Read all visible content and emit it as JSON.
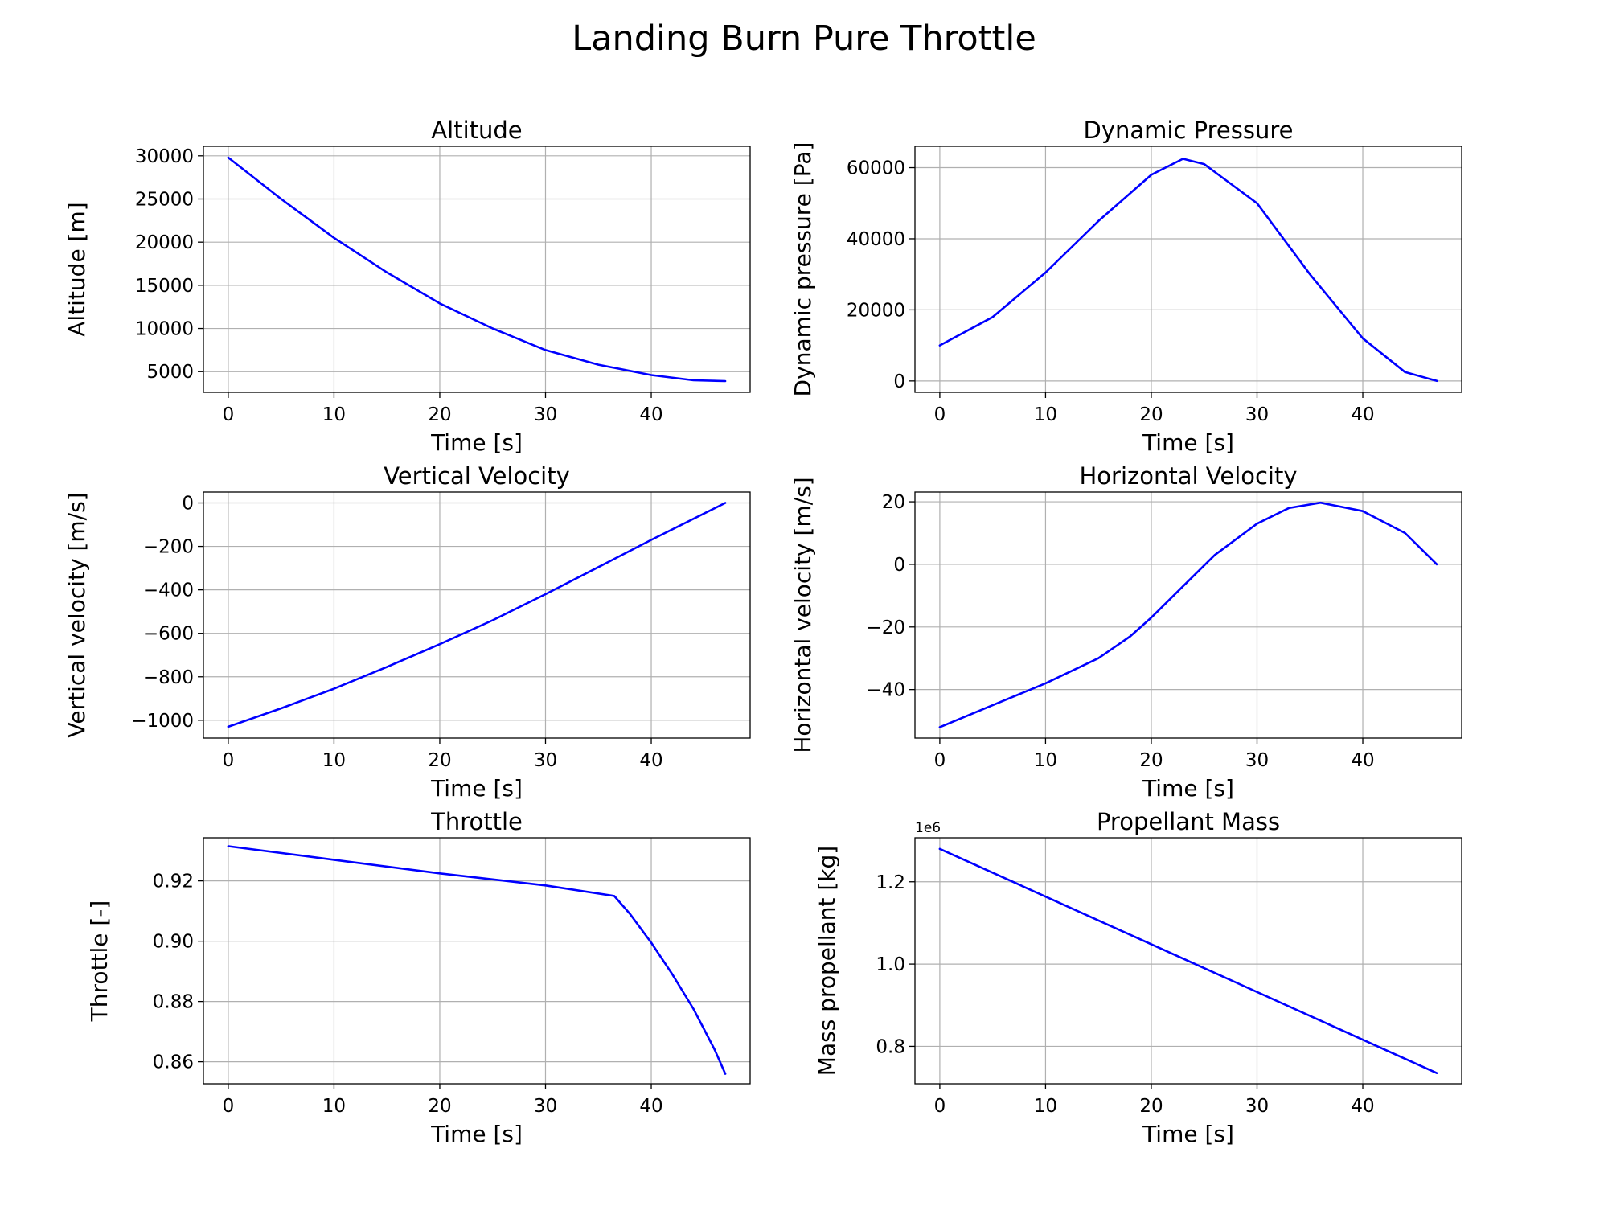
{
  "figure": {
    "title": "Landing Burn Pure Throttle",
    "line_color": "#0000ff",
    "grid": true
  },
  "chart_data": [
    {
      "type": "line",
      "title": "Altitude",
      "xlabel": "Time [s]",
      "ylabel": "Altitude [m]",
      "xlim": [
        -2.35,
        49.35
      ],
      "ylim": [
        2600,
        31100
      ],
      "xticks": [
        0,
        10,
        20,
        30,
        40
      ],
      "xtick_labels": [
        "0",
        "10",
        "20",
        "30",
        "40"
      ],
      "yticks": [
        5000,
        10000,
        15000,
        20000,
        25000,
        30000
      ],
      "ytick_labels": [
        "5000",
        "10000",
        "15000",
        "20000",
        "25000",
        "30000"
      ],
      "offset_text": "",
      "x": [
        0,
        5,
        10,
        15,
        20,
        25,
        30,
        35,
        40,
        44,
        47
      ],
      "y": [
        29800,
        25000,
        20500,
        16500,
        12900,
        10000,
        7500,
        5800,
        4600,
        4000,
        3900
      ]
    },
    {
      "type": "line",
      "title": "Dynamic Pressure",
      "xlabel": "Time [s]",
      "ylabel": "Dynamic pressure [Pa]",
      "xlim": [
        -2.35,
        49.35
      ],
      "ylim": [
        -3200,
        66000
      ],
      "xticks": [
        0,
        10,
        20,
        30,
        40
      ],
      "xtick_labels": [
        "0",
        "10",
        "20",
        "30",
        "40"
      ],
      "yticks": [
        0,
        20000,
        40000,
        60000
      ],
      "ytick_labels": [
        "0",
        "20000",
        "40000",
        "60000"
      ],
      "offset_text": "",
      "x": [
        0,
        5,
        10,
        15,
        20,
        23,
        25,
        30,
        35,
        40,
        44,
        47
      ],
      "y": [
        10000,
        18000,
        30500,
        45000,
        58000,
        62500,
        61000,
        50000,
        30000,
        12000,
        2500,
        0
      ]
    },
    {
      "type": "line",
      "title": "Vertical Velocity",
      "xlabel": "Time [s]",
      "ylabel": "Vertical velocity [m/s]",
      "xlim": [
        -2.35,
        49.35
      ],
      "ylim": [
        -1082,
        50
      ],
      "xticks": [
        0,
        10,
        20,
        30,
        40
      ],
      "xtick_labels": [
        "0",
        "10",
        "20",
        "30",
        "40"
      ],
      "yticks": [
        -1000,
        -800,
        -600,
        -400,
        -200,
        0
      ],
      "ytick_labels": [
        "−1000",
        "−800",
        "−600",
        "−400",
        "−200",
        "0"
      ],
      "offset_text": "",
      "x": [
        0,
        5,
        10,
        15,
        20,
        25,
        30,
        35,
        40,
        47
      ],
      "y": [
        -1030,
        -945,
        -855,
        -755,
        -650,
        -540,
        -420,
        -295,
        -170,
        0
      ]
    },
    {
      "type": "line",
      "title": "Horizontal Velocity",
      "xlabel": "Time [s]",
      "ylabel": "Horizontal velocity [m/s]",
      "xlim": [
        -2.35,
        49.35
      ],
      "ylim": [
        -55.5,
        23.1
      ],
      "xticks": [
        0,
        10,
        20,
        30,
        40
      ],
      "xtick_labels": [
        "0",
        "10",
        "20",
        "30",
        "40"
      ],
      "yticks": [
        -40,
        -20,
        0,
        20
      ],
      "ytick_labels": [
        "−40",
        "−20",
        "0",
        "20"
      ],
      "offset_text": "",
      "x": [
        0,
        5,
        10,
        15,
        18,
        20,
        23,
        26,
        30,
        33,
        36,
        40,
        44,
        47
      ],
      "y": [
        -52,
        -45,
        -38,
        -30,
        -23,
        -17,
        -7,
        3,
        13,
        18,
        19.7,
        17,
        10,
        0
      ]
    },
    {
      "type": "line",
      "title": "Throttle",
      "xlabel": "Time [s]",
      "ylabel": "Throttle [-]",
      "xlim": [
        -2.35,
        49.35
      ],
      "ylim": [
        0.8527,
        0.9343
      ],
      "xticks": [
        0,
        10,
        20,
        30,
        40
      ],
      "xtick_labels": [
        "0",
        "10",
        "20",
        "30",
        "40"
      ],
      "yticks": [
        0.86,
        0.88,
        0.9,
        0.92
      ],
      "ytick_labels": [
        "0.86",
        "0.88",
        "0.90",
        "0.92"
      ],
      "offset_text": "",
      "x": [
        0,
        10,
        20,
        30,
        36.5,
        38,
        40,
        42,
        44,
        46,
        47
      ],
      "y": [
        0.9315,
        0.927,
        0.9225,
        0.9185,
        0.915,
        0.909,
        0.8995,
        0.889,
        0.8775,
        0.864,
        0.856
      ]
    },
    {
      "type": "line",
      "title": "Propellant Mass",
      "xlabel": "Time [s]",
      "ylabel": "Mass propellant [kg]",
      "xlim": [
        -2.35,
        49.35
      ],
      "ylim": [
        0.709,
        1.307
      ],
      "xticks": [
        0,
        10,
        20,
        30,
        40
      ],
      "xtick_labels": [
        "0",
        "10",
        "20",
        "30",
        "40"
      ],
      "yticks": [
        0.8,
        1.0,
        1.2
      ],
      "ytick_labels": [
        "0.8",
        "1.0",
        "1.2"
      ],
      "offset_text": "1e6",
      "x": [
        0,
        47
      ],
      "y": [
        1.28,
        0.735
      ]
    }
  ]
}
